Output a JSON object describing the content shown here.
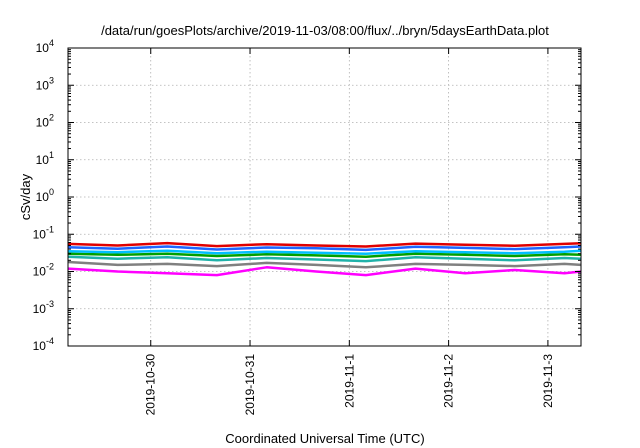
{
  "chart_data": {
    "type": "line",
    "title": "/data/run/goesPlots/archive/2019-11-03/08:00/flux/../bryn/5daysEarthData.plot",
    "xlabel": "Coordinated Universal Time (UTC)",
    "ylabel": "cSv/day",
    "y_scale": "log",
    "ylim": [
      0.0001,
      10000
    ],
    "xlim": [
      "2019-10-29T04:00",
      "2019-11-03T08:00"
    ],
    "grid": true,
    "legend": "none",
    "y_ticks": [
      {
        "mantissa": "10",
        "exp": "-4",
        "value": 0.0001
      },
      {
        "mantissa": "10",
        "exp": "-3",
        "value": 0.001
      },
      {
        "mantissa": "10",
        "exp": "-2",
        "value": 0.01
      },
      {
        "mantissa": "10",
        "exp": "-1",
        "value": 0.1
      },
      {
        "mantissa": "10",
        "exp": "0",
        "value": 1
      },
      {
        "mantissa": "10",
        "exp": "1",
        "value": 10
      },
      {
        "mantissa": "10",
        "exp": "2",
        "value": 100
      },
      {
        "mantissa": "10",
        "exp": "3",
        "value": 1000
      },
      {
        "mantissa": "10",
        "exp": "4",
        "value": 10000
      }
    ],
    "x_ticks": [
      {
        "label": "2019-10-30",
        "value": "2019-10-30T00:00"
      },
      {
        "label": "2019-10-31",
        "value": "2019-10-31T00:00"
      },
      {
        "label": "2019-11-1",
        "value": "2019-11-01T00:00"
      },
      {
        "label": "2019-11-2",
        "value": "2019-11-02T00:00"
      },
      {
        "label": "2019-11-3",
        "value": "2019-11-03T00:00"
      }
    ],
    "series": [
      {
        "color": "#ff00ff",
        "x": [
          "2019-10-29T04:00",
          "2019-10-29T16:00",
          "2019-10-30T04:00",
          "2019-10-30T16:00",
          "2019-10-31T04:00",
          "2019-10-31T16:00",
          "2019-11-01T04:00",
          "2019-11-01T16:00",
          "2019-11-02T04:00",
          "2019-11-02T16:00",
          "2019-11-03T04:00",
          "2019-11-03T08:00"
        ],
        "values": [
          0.012,
          0.01,
          0.009,
          0.008,
          0.013,
          0.01,
          0.008,
          0.012,
          0.009,
          0.011,
          0.009,
          0.01
        ]
      },
      {
        "color": "#808080",
        "x": [
          "2019-10-29T04:00",
          "2019-10-29T16:00",
          "2019-10-30T04:00",
          "2019-10-30T16:00",
          "2019-10-31T04:00",
          "2019-10-31T16:00",
          "2019-11-01T04:00",
          "2019-11-01T16:00",
          "2019-11-02T04:00",
          "2019-11-02T16:00",
          "2019-11-03T04:00",
          "2019-11-03T08:00"
        ],
        "values": [
          0.018,
          0.015,
          0.016,
          0.014,
          0.017,
          0.015,
          0.013,
          0.016,
          0.015,
          0.014,
          0.016,
          0.015
        ]
      },
      {
        "color": "#20b2aa",
        "x": [
          "2019-10-29T04:00",
          "2019-10-29T16:00",
          "2019-10-30T04:00",
          "2019-10-30T16:00",
          "2019-10-31T04:00",
          "2019-10-31T16:00",
          "2019-11-01T04:00",
          "2019-11-01T16:00",
          "2019-11-02T04:00",
          "2019-11-02T16:00",
          "2019-11-03T04:00",
          "2019-11-03T08:00"
        ],
        "values": [
          0.025,
          0.022,
          0.024,
          0.02,
          0.023,
          0.021,
          0.019,
          0.024,
          0.022,
          0.02,
          0.023,
          0.022
        ]
      },
      {
        "color": "#00a000",
        "x": [
          "2019-10-29T04:00",
          "2019-10-29T16:00",
          "2019-10-30T04:00",
          "2019-10-30T16:00",
          "2019-10-31T04:00",
          "2019-10-31T16:00",
          "2019-11-01T04:00",
          "2019-11-01T16:00",
          "2019-11-02T04:00",
          "2019-11-02T16:00",
          "2019-11-03T04:00",
          "2019-11-03T08:00"
        ],
        "values": [
          0.03,
          0.028,
          0.03,
          0.026,
          0.029,
          0.027,
          0.025,
          0.03,
          0.028,
          0.026,
          0.029,
          0.028
        ]
      },
      {
        "color": "#00bfff",
        "x": [
          "2019-10-29T04:00",
          "2019-10-29T16:00",
          "2019-10-30T04:00",
          "2019-10-30T16:00",
          "2019-10-31T04:00",
          "2019-10-31T16:00",
          "2019-11-01T04:00",
          "2019-11-01T16:00",
          "2019-11-02T04:00",
          "2019-11-02T16:00",
          "2019-11-03T04:00",
          "2019-11-03T08:00"
        ],
        "values": [
          0.035,
          0.033,
          0.036,
          0.031,
          0.034,
          0.032,
          0.03,
          0.035,
          0.033,
          0.031,
          0.034,
          0.036
        ]
      },
      {
        "color": "#e00000",
        "x": [
          "2019-10-29T04:00",
          "2019-10-29T16:00",
          "2019-10-30T04:00",
          "2019-10-30T16:00",
          "2019-10-31T04:00",
          "2019-10-31T16:00",
          "2019-11-01T04:00",
          "2019-11-01T16:00",
          "2019-11-02T04:00",
          "2019-11-02T16:00",
          "2019-11-03T04:00",
          "2019-11-03T08:00"
        ],
        "values": [
          0.055,
          0.05,
          0.058,
          0.048,
          0.054,
          0.05,
          0.047,
          0.056,
          0.052,
          0.049,
          0.055,
          0.057
        ]
      },
      {
        "color": "#1e64ff",
        "x": [
          "2019-10-29T04:00",
          "2019-10-29T16:00",
          "2019-10-30T04:00",
          "2019-10-30T16:00",
          "2019-10-31T04:00",
          "2019-10-31T16:00",
          "2019-11-01T04:00",
          "2019-11-01T16:00",
          "2019-11-02T04:00",
          "2019-11-02T16:00",
          "2019-11-03T04:00",
          "2019-11-03T08:00"
        ],
        "values": [
          0.045,
          0.041,
          0.047,
          0.039,
          0.044,
          0.042,
          0.038,
          0.046,
          0.043,
          0.04,
          0.045,
          0.047
        ]
      }
    ]
  }
}
